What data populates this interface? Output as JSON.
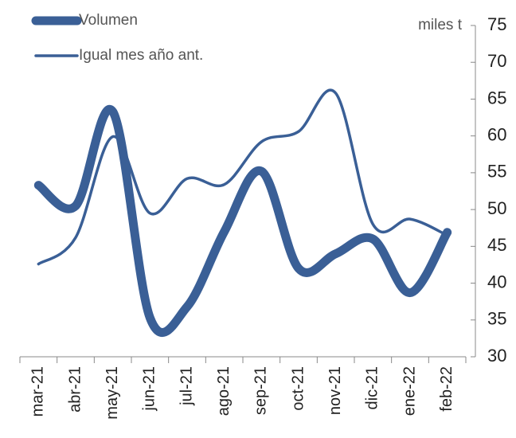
{
  "chart_data": {
    "type": "line",
    "y_label": "miles t",
    "categories": [
      "mar-21",
      "abr-21",
      "may-21",
      "jun-21",
      "jul-21",
      "ago-21",
      "sep-21",
      "oct-21",
      "nov-21",
      "dic-21",
      "ene-22",
      "feb-22"
    ],
    "series": [
      {
        "name": "Volumen",
        "color": "#3a5f96",
        "values": [
          53.3,
          50.5,
          63.3,
          35.3,
          36.8,
          47,
          55.2,
          42,
          44,
          46,
          38.7,
          46.9
        ]
      },
      {
        "name": "Igual mes año ant.",
        "color": "#3a5f96",
        "values": [
          42.6,
          46.2,
          59.9,
          49.5,
          54.2,
          53.4,
          59.2,
          60.6,
          65.8,
          48,
          48.7,
          46.5
        ]
      }
    ],
    "ylim": [
      30,
      75
    ],
    "yticks": [
      30,
      35,
      40,
      45,
      50,
      55,
      60,
      65,
      70,
      75
    ],
    "grid": false
  }
}
